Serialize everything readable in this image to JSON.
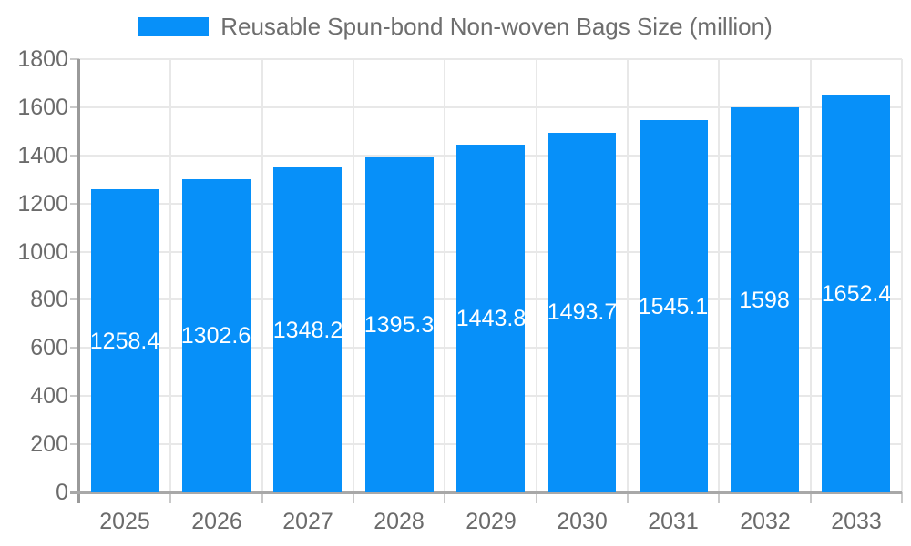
{
  "chart_data": {
    "type": "bar",
    "title": "Reusable Spun-bond Non-woven Bags Size (million)",
    "categories": [
      "2025",
      "2026",
      "2027",
      "2028",
      "2029",
      "2030",
      "2031",
      "2032",
      "2033"
    ],
    "values": [
      1258.4,
      1302.6,
      1348.2,
      1395.3,
      1443.8,
      1493.7,
      1545.1,
      1598,
      1652.4
    ],
    "value_labels": [
      "1258.4",
      "1302.6",
      "1348.2",
      "1395.3",
      "1443.8",
      "1493.7",
      "1545.1",
      "1598",
      "1652.4"
    ],
    "yticks": [
      0,
      200,
      400,
      600,
      800,
      1000,
      1200,
      1400,
      1600,
      1800
    ],
    "ylim": [
      0,
      1800
    ],
    "grid": true,
    "legend_position": "top",
    "colors": {
      "bar": "#0790f9",
      "grid": "#e8e8e8",
      "axis": "#9a9a9a",
      "tick_text": "#6b6b6b",
      "title_text": "#6e6e6e",
      "value_text": "#ffffff",
      "background": "#ffffff"
    }
  }
}
